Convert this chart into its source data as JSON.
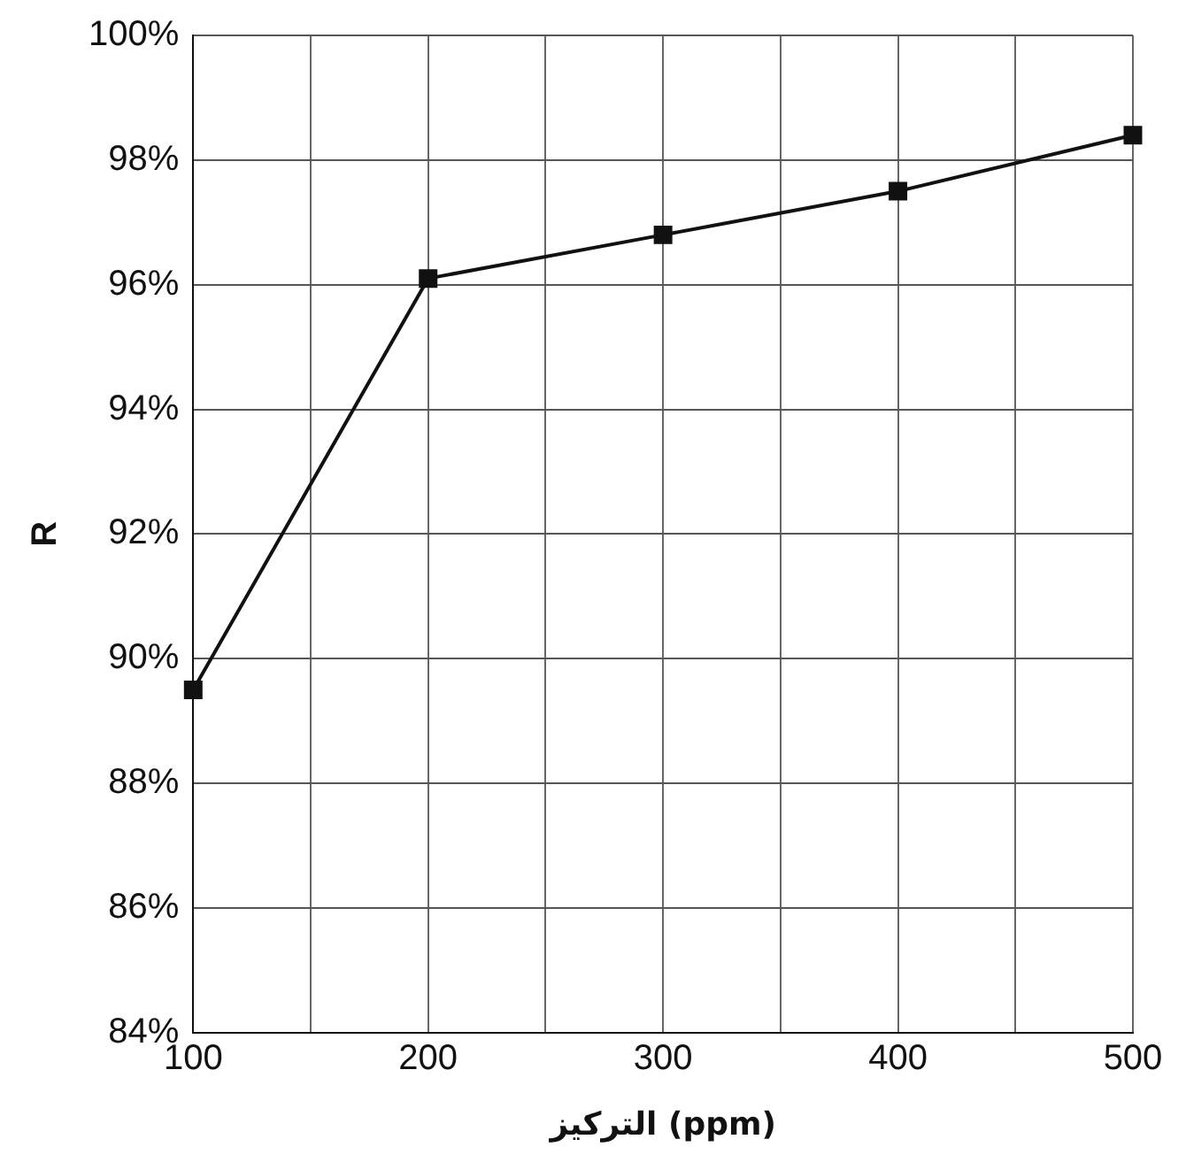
{
  "chart_data": {
    "type": "line",
    "xlabel": "التركيز (ppm)",
    "ylabel": "R",
    "x": [
      100,
      200,
      300,
      400,
      500
    ],
    "series": [
      {
        "color": "#111111",
        "values": [
          89.5,
          96.1,
          96.8,
          97.5,
          98.4
        ]
      }
    ],
    "xlim": [
      100,
      500
    ],
    "xticks": [
      100,
      {
        "value": 150,
        "label": null
      },
      200,
      {
        "value": 250,
        "label": null
      },
      300,
      {
        "value": 350,
        "label": null
      },
      400,
      {
        "value": 450,
        "label": null
      },
      500
    ],
    "ylim": [
      84,
      100
    ],
    "yticks": [
      {
        "value": 84,
        "label": "84%"
      },
      {
        "value": 86,
        "label": "86%"
      },
      {
        "value": 88,
        "label": "88%"
      },
      {
        "value": 90,
        "label": "90%"
      },
      {
        "value": 92,
        "label": "92%"
      },
      {
        "value": 94,
        "label": "94%"
      },
      {
        "value": 96,
        "label": "96%"
      },
      {
        "value": 98,
        "label": "98%"
      },
      {
        "value": 100,
        "label": "100%"
      }
    ],
    "grid": true,
    "legend": false,
    "marker": "square",
    "line_style": "solid"
  }
}
